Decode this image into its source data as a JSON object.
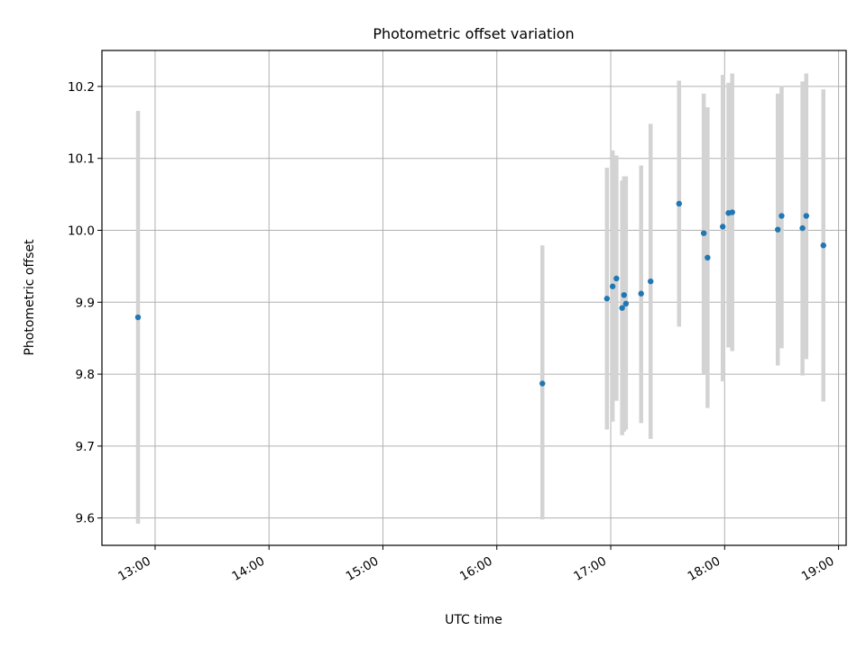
{
  "chart_data": {
    "type": "scatter",
    "title": "Photometric offset variation",
    "xlabel": "UTC time",
    "ylabel": "Photometric offset",
    "x_axis_type": "time",
    "xlim": [
      "12:32",
      "19:04"
    ],
    "ylim": [
      9.562,
      10.25
    ],
    "x_ticks": [
      "13:00",
      "14:00",
      "15:00",
      "16:00",
      "17:00",
      "18:00",
      "19:00"
    ],
    "y_ticks": [
      "9.6",
      "9.7",
      "9.8",
      "9.9",
      "10.0",
      "10.1",
      "10.2"
    ],
    "x_tick_rotation_deg": 30,
    "grid": true,
    "legend": "none",
    "point_color": "#1f77b4",
    "errorbar_color": "#d3d3d3",
    "points": [
      {
        "x": "12:51",
        "y": 9.879,
        "ylow": 9.592,
        "yhigh": 10.166
      },
      {
        "x": "16:24",
        "y": 9.787,
        "ylow": 9.598,
        "yhigh": 9.979
      },
      {
        "x": "16:58",
        "y": 9.905,
        "ylow": 9.723,
        "yhigh": 10.087
      },
      {
        "x": "17:01",
        "y": 9.922,
        "ylow": 9.734,
        "yhigh": 10.111
      },
      {
        "x": "17:03",
        "y": 9.933,
        "ylow": 9.763,
        "yhigh": 10.104
      },
      {
        "x": "17:06",
        "y": 9.892,
        "ylow": 9.715,
        "yhigh": 10.069
      },
      {
        "x": "17:07",
        "y": 9.91,
        "ylow": 9.72,
        "yhigh": 10.075
      },
      {
        "x": "17:08",
        "y": 9.898,
        "ylow": 9.723,
        "yhigh": 10.075
      },
      {
        "x": "17:16",
        "y": 9.912,
        "ylow": 9.732,
        "yhigh": 10.09
      },
      {
        "x": "17:21",
        "y": 9.929,
        "ylow": 9.71,
        "yhigh": 10.148
      },
      {
        "x": "17:36",
        "y": 10.037,
        "ylow": 9.866,
        "yhigh": 10.208
      },
      {
        "x": "17:49",
        "y": 9.996,
        "ylow": 9.8,
        "yhigh": 10.19
      },
      {
        "x": "17:51",
        "y": 9.962,
        "ylow": 9.753,
        "yhigh": 10.171
      },
      {
        "x": "17:59",
        "y": 10.005,
        "ylow": 9.79,
        "yhigh": 10.216
      },
      {
        "x": "18:02",
        "y": 10.024,
        "ylow": 9.837,
        "yhigh": 10.205
      },
      {
        "x": "18:04",
        "y": 10.025,
        "ylow": 9.832,
        "yhigh": 10.218
      },
      {
        "x": "18:28",
        "y": 10.001,
        "ylow": 9.812,
        "yhigh": 10.19
      },
      {
        "x": "18:30",
        "y": 10.02,
        "ylow": 9.836,
        "yhigh": 10.201
      },
      {
        "x": "18:41",
        "y": 10.003,
        "ylow": 9.798,
        "yhigh": 10.207
      },
      {
        "x": "18:43",
        "y": 10.02,
        "ylow": 9.821,
        "yhigh": 10.218
      },
      {
        "x": "18:52",
        "y": 9.979,
        "ylow": 9.762,
        "yhigh": 10.196
      }
    ]
  }
}
